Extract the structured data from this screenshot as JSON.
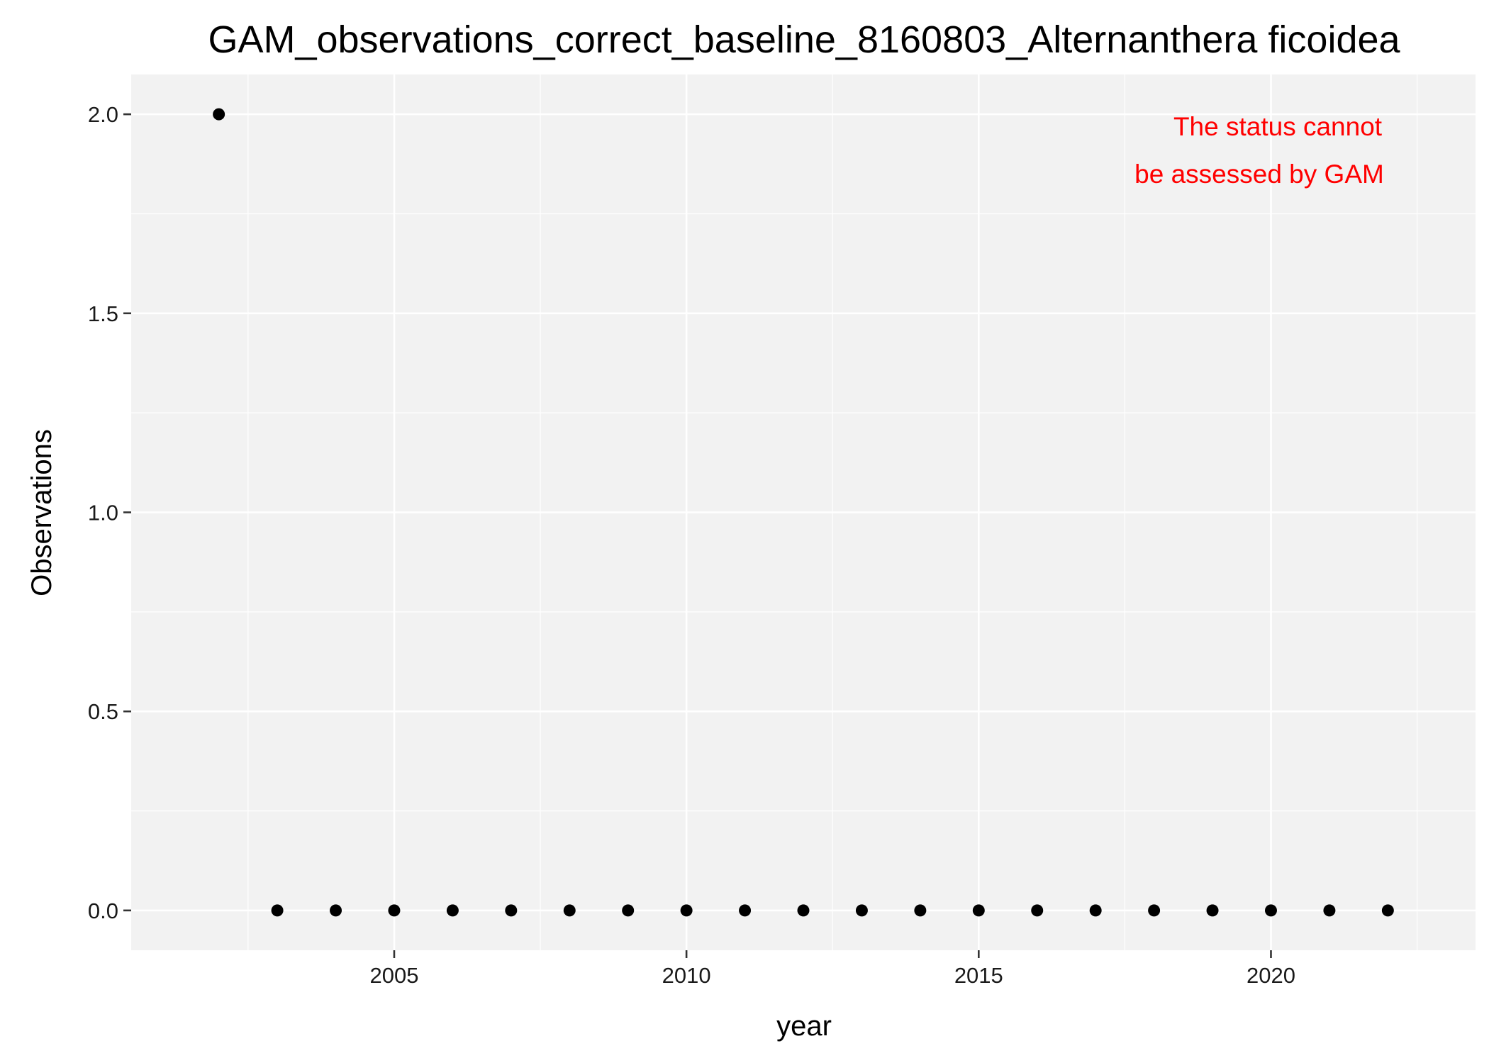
{
  "chart_data": {
    "type": "scatter",
    "title": "GAM_observations_correct_baseline_8160803_Alternanthera ficoidea",
    "xlabel": "year",
    "ylabel": "Observations",
    "x_ticks": [
      2005,
      2010,
      2015,
      2020
    ],
    "x_tick_labels": [
      "2005",
      "2010",
      "2015",
      "2020"
    ],
    "y_ticks": [
      0.0,
      0.5,
      1.0,
      1.5,
      2.0
    ],
    "y_tick_labels": [
      "0.0",
      "0.5",
      "1.0",
      "1.5",
      "2.0"
    ],
    "xlim": [
      2000.5,
      2023.5
    ],
    "ylim": [
      -0.1,
      2.1
    ],
    "grid": true,
    "x": [
      2002,
      2003,
      2004,
      2005,
      2006,
      2007,
      2008,
      2009,
      2010,
      2011,
      2012,
      2013,
      2014,
      2015,
      2016,
      2017,
      2018,
      2019,
      2020,
      2021,
      2022
    ],
    "y": [
      2,
      0,
      0,
      0,
      0,
      0,
      0,
      0,
      0,
      0,
      0,
      0,
      0,
      0,
      0,
      0,
      0,
      0,
      0,
      0,
      0
    ],
    "annotation": {
      "line1": "The status cannot",
      "line2": "be assessed by GAM",
      "color": "#ff0000"
    },
    "panel_background": "#f2f2f2",
    "grid_color": "#ffffff",
    "point_color": "#000000"
  }
}
